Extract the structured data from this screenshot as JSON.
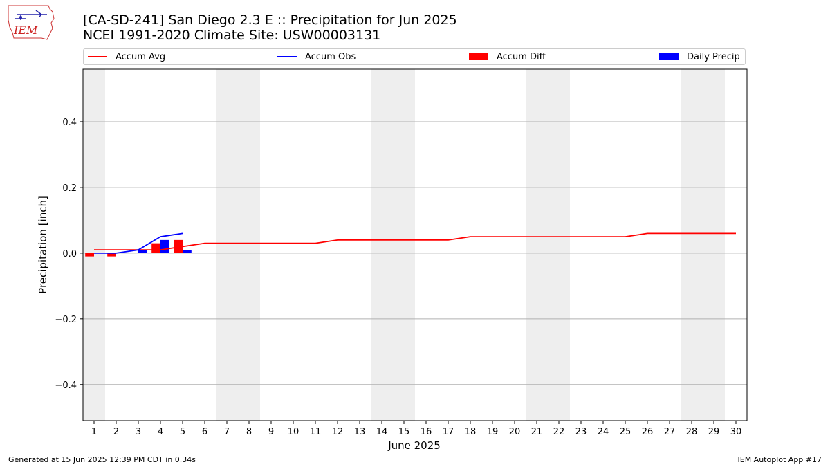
{
  "header": {
    "title_line1": "[CA-SD-241] San Diego 2.3 E :: Precipitation for Jun 2025",
    "title_line2": "NCEI 1991-2020 Climate Site: USW00003131"
  },
  "logo": {
    "text": "IEM",
    "color": "#cc2222"
  },
  "legend": {
    "items": [
      {
        "label": "Accum Avg",
        "kind": "line",
        "color": "#ff0000"
      },
      {
        "label": "Accum Obs",
        "kind": "line",
        "color": "#0000ff"
      },
      {
        "label": "Accum Diff",
        "kind": "bar",
        "color": "#ff0000"
      },
      {
        "label": "Daily Precip",
        "kind": "bar",
        "color": "#0000ff"
      }
    ]
  },
  "footer": {
    "generated": "Generated at 15 Jun 2025 12:39 PM CDT in 0.34s",
    "app": "IEM Autoplot App #17"
  },
  "chart_data": {
    "type": "line",
    "xlabel": "June 2025",
    "ylabel": "Precipitation [inch]",
    "x": [
      1,
      2,
      3,
      4,
      5,
      6,
      7,
      8,
      9,
      10,
      11,
      12,
      13,
      14,
      15,
      16,
      17,
      18,
      19,
      20,
      21,
      22,
      23,
      24,
      25,
      26,
      27,
      28,
      29,
      30
    ],
    "xlim": [
      0.5,
      30.5
    ],
    "ylim": [
      -0.51,
      0.56
    ],
    "yticks": [
      -0.4,
      -0.2,
      0.0,
      0.2,
      0.4
    ],
    "ytick_labels": [
      "−0.4",
      "−0.2",
      "0.0",
      "0.2",
      "0.4"
    ],
    "grid": "horizontal",
    "weekend_shading": [
      [
        0.5,
        1.5
      ],
      [
        6.5,
        8.5
      ],
      [
        13.5,
        15.5
      ],
      [
        20.5,
        22.5
      ],
      [
        27.5,
        29.5
      ]
    ],
    "weekend_color": "#eeeeee",
    "series": [
      {
        "name": "Accum Avg",
        "type": "line",
        "color": "#ff0000",
        "x": [
          1,
          2,
          3,
          4,
          5,
          6,
          7,
          8,
          9,
          10,
          11,
          12,
          13,
          14,
          15,
          16,
          17,
          18,
          19,
          20,
          21,
          22,
          23,
          24,
          25,
          26,
          27,
          28,
          29,
          30
        ],
        "values": [
          0.01,
          0.01,
          0.01,
          0.01,
          0.02,
          0.03,
          0.03,
          0.03,
          0.03,
          0.03,
          0.03,
          0.04,
          0.04,
          0.04,
          0.04,
          0.04,
          0.04,
          0.05,
          0.05,
          0.05,
          0.05,
          0.05,
          0.05,
          0.05,
          0.05,
          0.06,
          0.06,
          0.06,
          0.06,
          0.06
        ]
      },
      {
        "name": "Accum Obs",
        "type": "line",
        "color": "#0000ff",
        "x": [
          1,
          2,
          3,
          4,
          5
        ],
        "values": [
          0.0,
          0.0,
          0.01,
          0.05,
          0.06
        ]
      },
      {
        "name": "Accum Diff",
        "type": "bar",
        "color": "#ff0000",
        "x": [
          1,
          2,
          3,
          4,
          5
        ],
        "values": [
          -0.01,
          -0.01,
          0.0,
          0.03,
          0.04
        ]
      },
      {
        "name": "Daily Precip",
        "type": "bar",
        "color": "#0000ff",
        "x": [
          1,
          2,
          3,
          4,
          5
        ],
        "values": [
          0.0,
          0.0,
          0.01,
          0.04,
          0.01
        ]
      }
    ]
  }
}
